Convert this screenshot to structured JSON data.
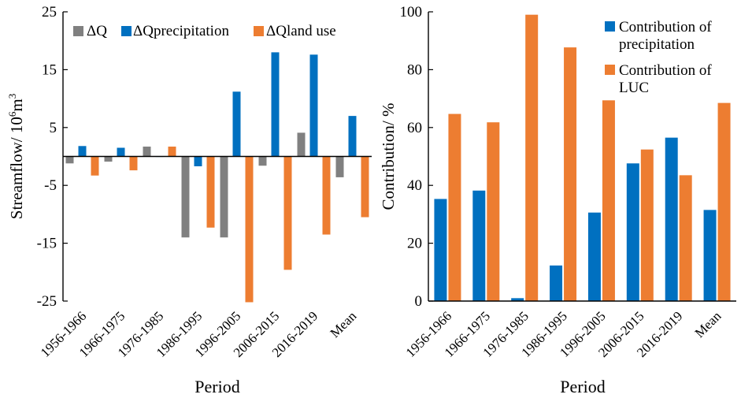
{
  "chart_data": [
    {
      "type": "bar",
      "categories": [
        "1956-1966",
        "1966-1975",
        "1976-1985",
        "1986-1995",
        "1996-2005",
        "2006-2015",
        "2016-2019",
        "Mean"
      ],
      "series": [
        {
          "name": "ΔQ",
          "color": "#808080",
          "values": [
            -1.2,
            -0.9,
            1.7,
            -14.0,
            -14.0,
            -1.6,
            4.1,
            -3.6
          ]
        },
        {
          "name": "ΔQprecipitation",
          "color": "#0070C0",
          "values": [
            1.8,
            1.5,
            0.0,
            -1.7,
            11.2,
            18.0,
            17.6,
            7.0
          ]
        },
        {
          "name": "ΔQland use",
          "color": "#ED7D31",
          "values": [
            -3.3,
            -2.4,
            1.7,
            -12.3,
            -25.2,
            -19.6,
            -13.5,
            -10.5
          ]
        }
      ],
      "xlabel": "Period",
      "ylabel_main": "Streamflow/ 10",
      "ylabel_exp1": "6",
      "ylabel_unit": "m",
      "ylabel_exp2": "3",
      "ylim": [
        -25,
        25
      ],
      "yticks": [
        "25",
        "15",
        "5",
        "-5",
        "-15",
        "-25"
      ],
      "ytick_values": [
        25,
        15,
        5,
        -5,
        -15,
        -25
      ],
      "legend_position": "top",
      "grid": false
    },
    {
      "type": "bar",
      "categories": [
        "1956-1966",
        "1966-1975",
        "1976-1985",
        "1986-1995",
        "1996-2005",
        "2006-2015",
        "2016-2019",
        "Mean"
      ],
      "series": [
        {
          "name": "Contribution of precipitation",
          "color": "#0070C0",
          "values": [
            35.3,
            38.2,
            1.0,
            12.3,
            30.6,
            47.6,
            56.5,
            31.5
          ]
        },
        {
          "name": "Contribution of LUC",
          "color": "#ED7D31",
          "values": [
            64.7,
            61.8,
            99.0,
            87.7,
            69.4,
            52.4,
            43.5,
            68.5
          ]
        }
      ],
      "legend_lines": [
        [
          "Contribution of",
          "precipitation"
        ],
        [
          "Contribution of",
          "LUC"
        ]
      ],
      "xlabel": "Period",
      "ylabel": "Contribution/ %",
      "ylim": [
        0,
        100
      ],
      "yticks": [
        "0",
        "20",
        "40",
        "60",
        "80",
        "100"
      ],
      "ytick_values": [
        0,
        20,
        40,
        60,
        80,
        100
      ],
      "legend_position": "top-right",
      "grid": false
    }
  ]
}
